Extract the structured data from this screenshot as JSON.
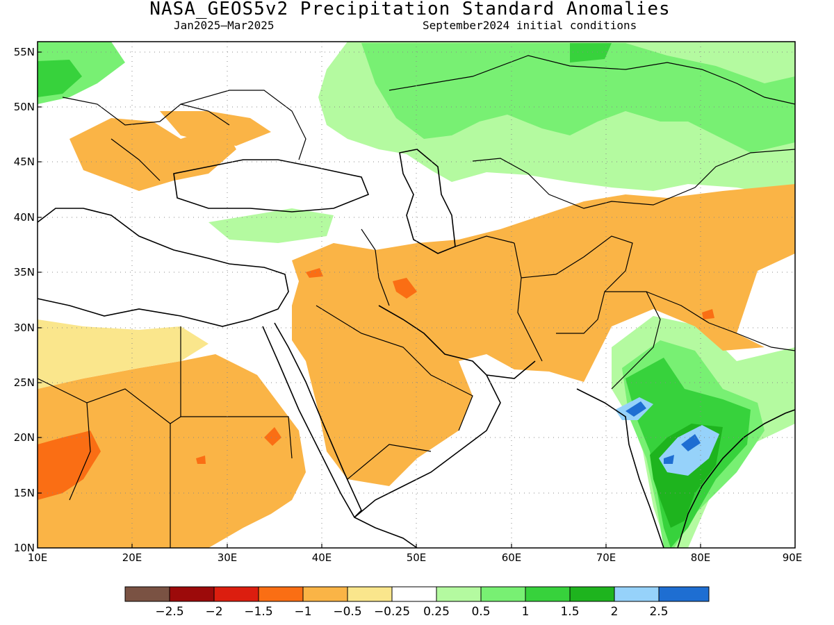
{
  "title": "NASA_GEOS5v2 Precipitation Standard Anomalies",
  "subtitle_left": "Jan2025–Mar2025",
  "subtitle_right": "September2024 initial conditions",
  "map": {
    "lon_range": [
      10,
      90
    ],
    "lat_range": [
      10,
      56
    ],
    "lat_ticks": [
      "55N",
      "50N",
      "45N",
      "40N",
      "35N",
      "30N",
      "25N",
      "20N",
      "15N",
      "10N"
    ],
    "lon_ticks": [
      "10E",
      "20E",
      "30E",
      "40E",
      "50E",
      "60E",
      "70E",
      "80E",
      "90E"
    ],
    "gridlines": "dotted"
  },
  "colorbar": {
    "colors": [
      "#7a5243",
      "#9c0a0a",
      "#dc1e0f",
      "#fa6e14",
      "#fab446",
      "#fae68c",
      "#ffffff",
      "#b4faa0",
      "#78f073",
      "#37d23c",
      "#1eb41e",
      "#96d2fa",
      "#1e6ed2"
    ],
    "labels": [
      "−2.5",
      "−2",
      "−1.5",
      "−1",
      "−0.5",
      "−0.25",
      "0.25",
      "0.5",
      "1",
      "1.5",
      "2",
      "2.5"
    ]
  }
}
